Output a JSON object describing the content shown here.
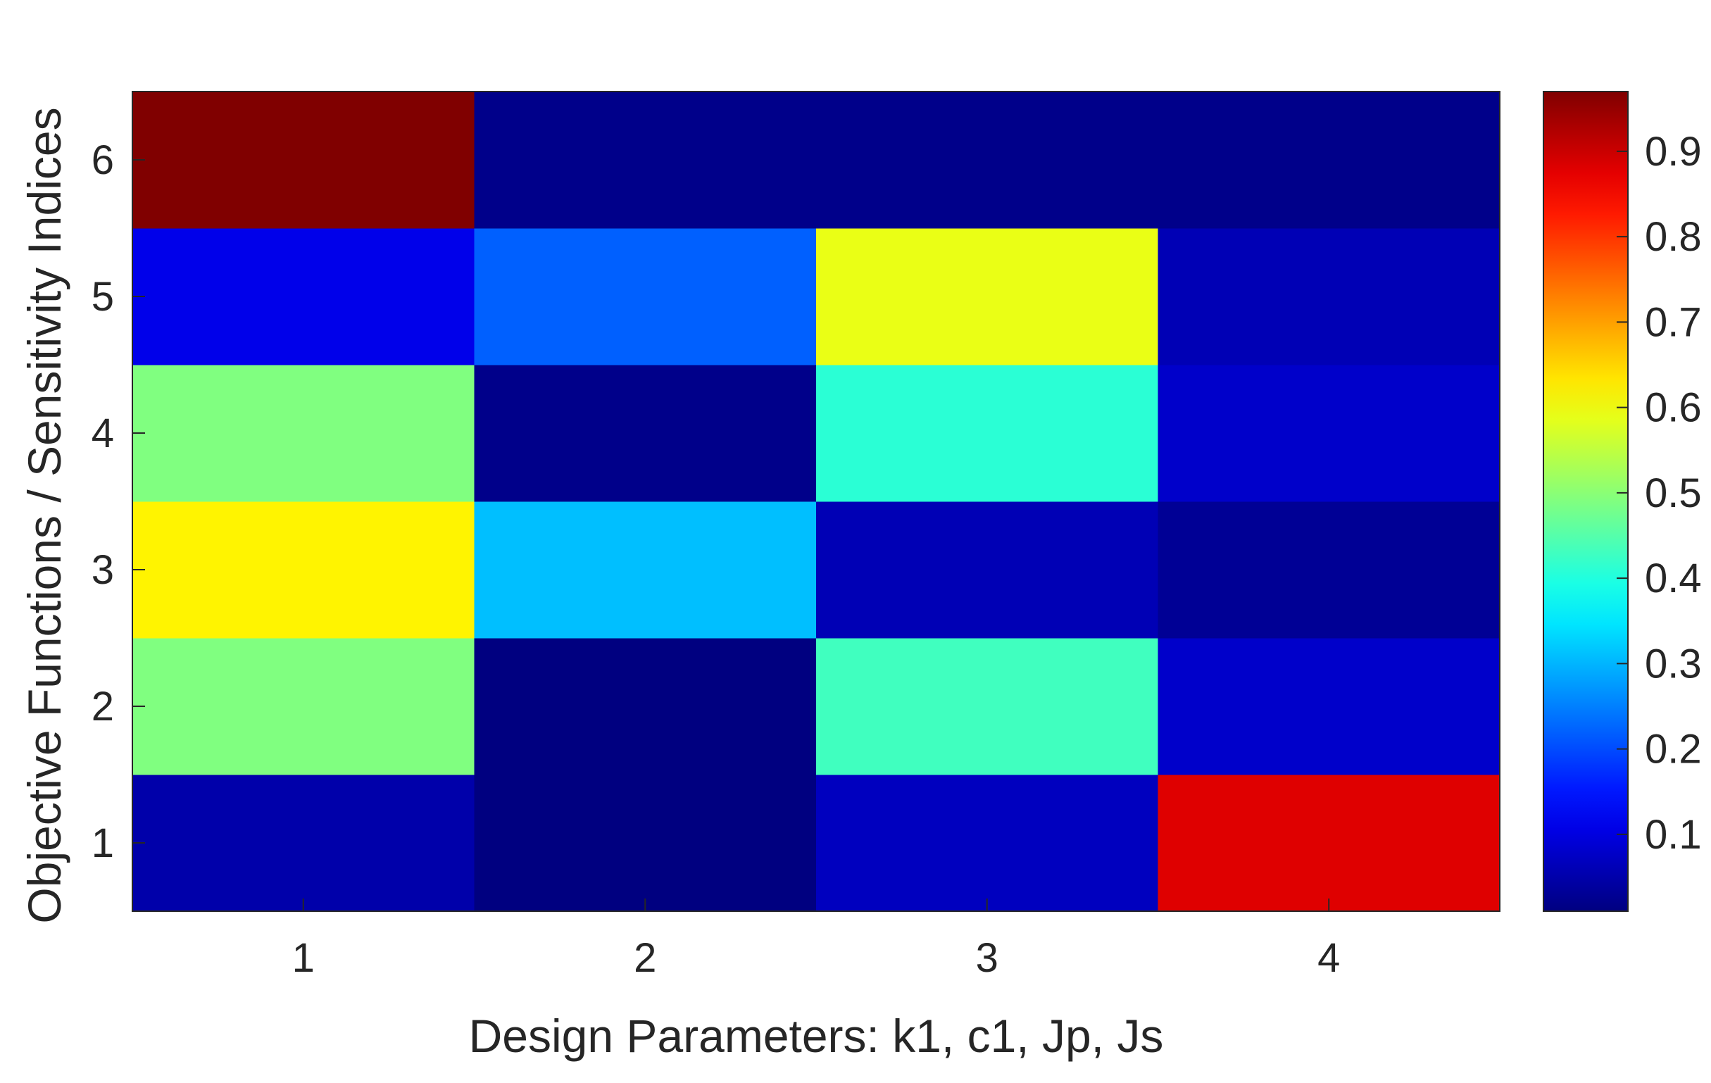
{
  "chart_data": {
    "type": "heatmap",
    "colormap": "jet",
    "xlabel": "Design Parameters: k1, c1, Jp, Js",
    "ylabel": "Objective Functions / Sensitivity Indices",
    "x_ticks": [
      "1",
      "2",
      "3",
      "4"
    ],
    "y_ticks": [
      "1",
      "2",
      "3",
      "4",
      "5",
      "6"
    ],
    "rows": [
      1,
      2,
      3,
      4,
      5,
      6
    ],
    "columns": [
      1,
      2,
      3,
      4
    ],
    "values": [
      [
        0.05,
        0.01,
        0.07,
        0.88
      ],
      [
        0.49,
        0.01,
        0.43,
        0.08
      ],
      [
        0.62,
        0.31,
        0.06,
        0.03
      ],
      [
        0.49,
        0.02,
        0.41,
        0.08
      ],
      [
        0.11,
        0.22,
        0.59,
        0.06
      ],
      [
        0.97,
        0.02,
        0.02,
        0.02
      ]
    ],
    "colorbar": {
      "min": 0.01,
      "max": 0.97,
      "ticks": [
        "0.1",
        "0.2",
        "0.3",
        "0.4",
        "0.5",
        "0.6",
        "0.7",
        "0.8",
        "0.9"
      ]
    },
    "grid": false
  }
}
